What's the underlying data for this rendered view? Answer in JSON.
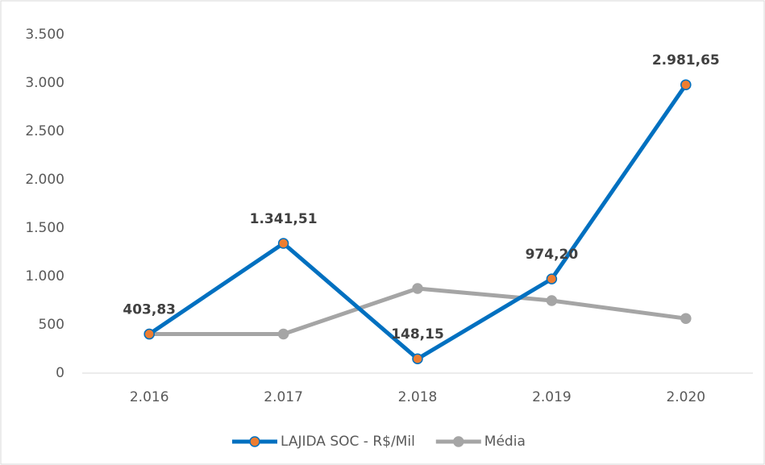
{
  "chart_data": {
    "type": "line",
    "categories": [
      "2.016",
      "2.017",
      "2.018",
      "2.019",
      "2.020"
    ],
    "series": [
      {
        "name": "LAJIDA SOC - R$/Mil",
        "color": "#0070c0",
        "marker_color": "#ed7d31",
        "values": [
          403.83,
          1341.51,
          148.15,
          974.2,
          2981.65
        ],
        "value_labels": [
          "403,83",
          "1.341,51",
          "148,15",
          "974,20",
          "2.981,65"
        ]
      },
      {
        "name": "Média",
        "color": "#a5a5a5",
        "marker_color": "#a5a5a5",
        "values": [
          404,
          404,
          875,
          750,
          565
        ]
      }
    ],
    "ylim": [
      0,
      3500
    ],
    "yticks": [
      {
        "value": 0,
        "label": "0"
      },
      {
        "value": 500,
        "label": "500"
      },
      {
        "value": 1000,
        "label": "1.000"
      },
      {
        "value": 1500,
        "label": "1.500"
      },
      {
        "value": 2000,
        "label": "2.000"
      },
      {
        "value": 2500,
        "label": "2.500"
      },
      {
        "value": 3000,
        "label": "3.000"
      },
      {
        "value": 3500,
        "label": "3.500"
      }
    ],
    "legend": "bottom"
  }
}
